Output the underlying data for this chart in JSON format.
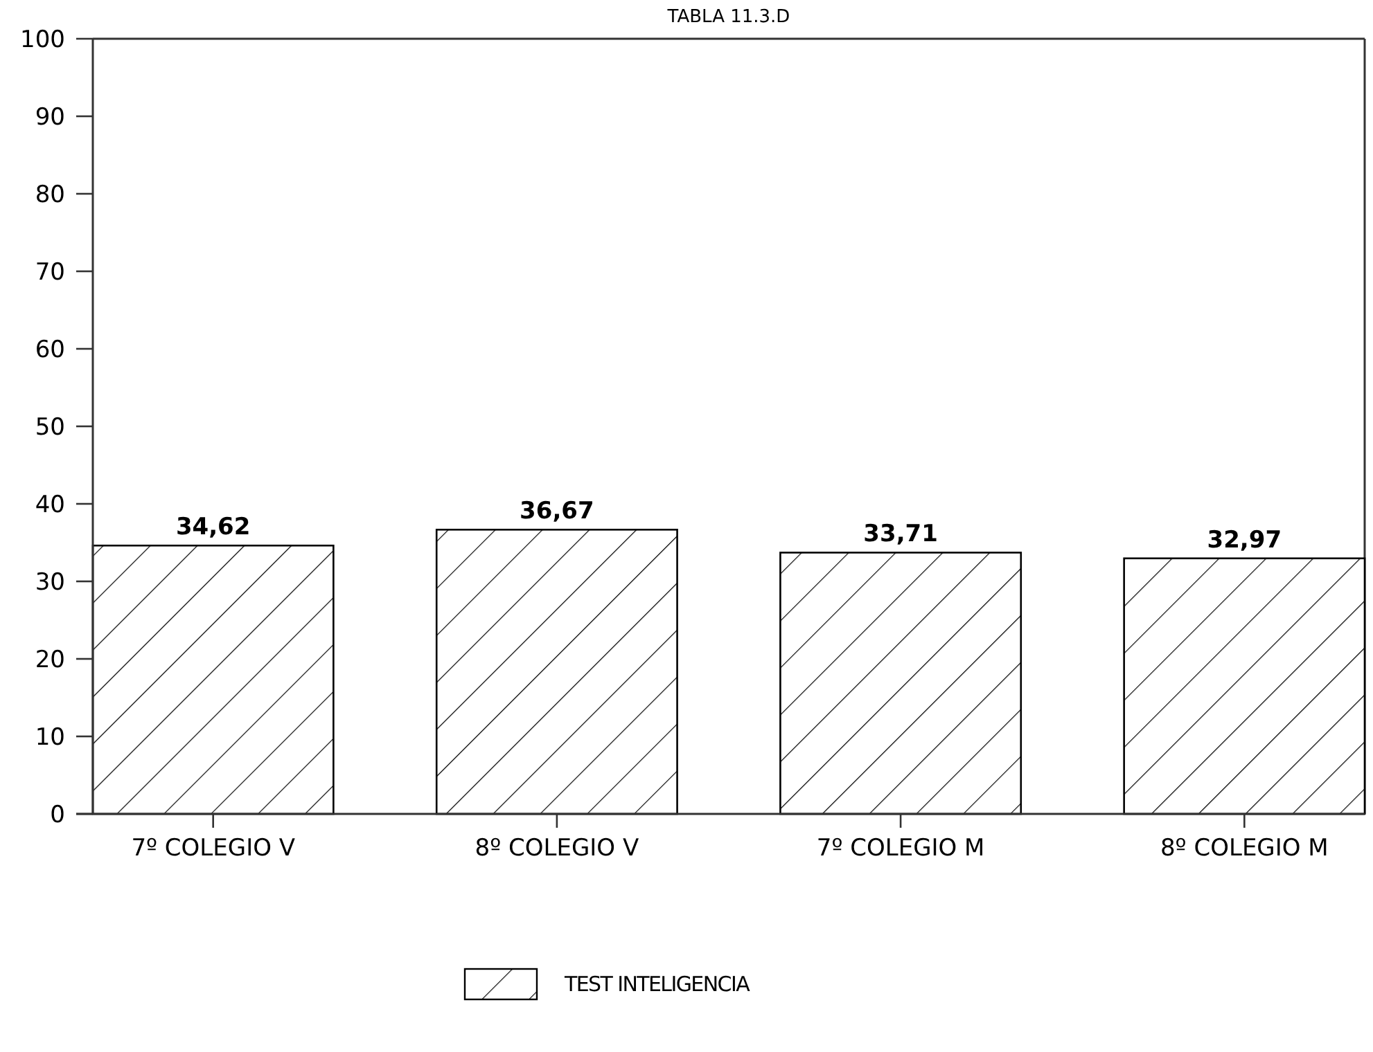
{
  "chart_data": {
    "type": "bar",
    "title": "TABLA 11.3.D",
    "categories": [
      "7º COLEGIO V",
      "8º COLEGIO V",
      "7º COLEGIO M",
      "8º COLEGIO M"
    ],
    "series": [
      {
        "name": "TEST INTELIGENCIA",
        "color": "#000000",
        "values": [
          34.62,
          36.67,
          33.71,
          32.97
        ]
      }
    ],
    "ylim": [
      0,
      100
    ],
    "yticks": [
      0,
      10,
      20,
      30,
      40,
      50,
      60,
      70,
      80,
      90,
      100
    ],
    "value_labels": [
      "34,62",
      "36,67",
      "33,71",
      "32,97"
    ],
    "legend": "bottom",
    "grid": false
  }
}
